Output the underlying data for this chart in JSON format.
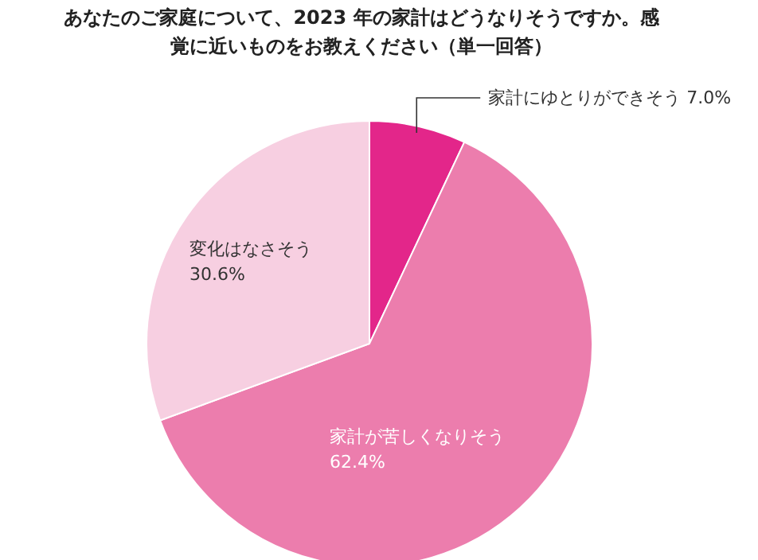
{
  "chart_data": {
    "type": "pie",
    "title": "あなたのご家庭について、2023 年の家計はどうなりそうですか。感覚に近いものをお教えください（単一回答）",
    "categories": [
      "家計にゆとりができそう",
      "家計が苦しくなりそう",
      "変化はなさそう"
    ],
    "values": [
      7.0,
      62.4,
      30.6
    ],
    "value_labels": [
      "7.0%",
      "62.4%",
      "30.6%"
    ],
    "colors": [
      "#e3268a",
      "#ec7dad",
      "#f7cfe1"
    ]
  }
}
